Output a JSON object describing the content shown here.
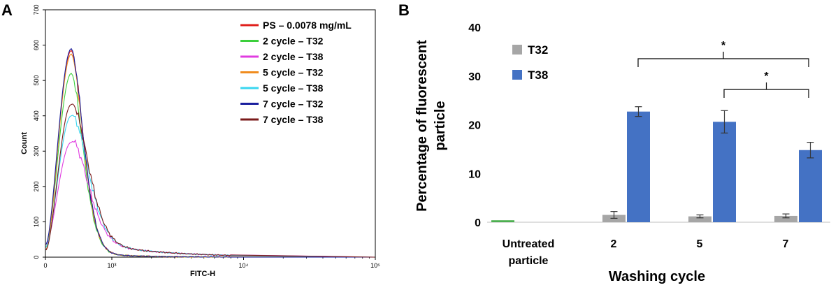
{
  "panels": {
    "a_letter": "A",
    "b_letter": "B"
  },
  "chart_data": [
    {
      "type": "line",
      "xlabel": "FITC-H",
      "ylabel": "Count",
      "xscale": "log",
      "x_ticks": [
        {
          "value": 0,
          "label": "0"
        },
        {
          "value": 1000,
          "label": "10³"
        },
        {
          "value": 10000,
          "label": "10⁴"
        },
        {
          "value": 100000,
          "label": "10⁵"
        }
      ],
      "y_ticks": [
        0,
        100,
        200,
        300,
        400,
        500,
        600,
        700
      ],
      "ylim": [
        0,
        700
      ],
      "legend_position": "top-right",
      "series": [
        {
          "name": "PS – 0.0078 mg/mL",
          "color": "#e0201c",
          "peak": 585
        },
        {
          "name": "2 cycle – T32",
          "color": "#3ccf3c",
          "peak": 520
        },
        {
          "name": "2 cycle – T38",
          "color": "#e03ce0",
          "peak": 325
        },
        {
          "name": "5 cycle – T32",
          "color": "#f08c1e",
          "peak": 575
        },
        {
          "name": "5 cycle – T38",
          "color": "#39d6f0",
          "peak": 400
        },
        {
          "name": "7 cycle – T32",
          "color": "#1a1f9e",
          "peak": 590
        },
        {
          "name": "7 cycle – T38",
          "color": "#7a1a1a",
          "peak": 432
        }
      ]
    },
    {
      "type": "bar",
      "xlabel": "Washing cycle",
      "ylabel_line1": "Percentage of fluorescent",
      "ylabel_line2": "particle",
      "ylim": [
        0,
        40
      ],
      "y_ticks": [
        0,
        10,
        20,
        30,
        40
      ],
      "categories": [
        {
          "line1": "Untreated",
          "line2": "particle"
        },
        {
          "line1": "2",
          "line2": ""
        },
        {
          "line1": "5",
          "line2": ""
        },
        {
          "line1": "7",
          "line2": ""
        }
      ],
      "series": [
        {
          "name": "T32",
          "color": "#a6a6a6",
          "values": [
            null,
            1.5,
            1.2,
            1.3
          ],
          "errors": [
            0,
            0.7,
            0.3,
            0.4
          ]
        },
        {
          "name": "T38",
          "color": "#4472c4",
          "values": [
            null,
            22.7,
            20.6,
            14.8
          ],
          "errors": [
            0,
            1.0,
            2.3,
            1.6
          ]
        }
      ],
      "untreated": {
        "value": 0.4,
        "color": "#4caf50"
      },
      "legend_position": "top-left",
      "significance": [
        {
          "from": 1,
          "to": 3,
          "label": "*"
        },
        {
          "from": 2,
          "to": 3,
          "label": "*"
        }
      ]
    }
  ]
}
